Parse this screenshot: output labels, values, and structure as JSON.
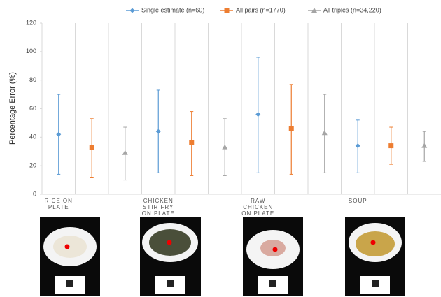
{
  "chart_data": {
    "type": "errorbar",
    "y_label": "Percentage Error (%)",
    "categories": [
      "RICE ON PLATE",
      "CHICKEN STIR FRY ON PLATE",
      "RAW CHICKEN ON PLATE",
      "SOUP"
    ],
    "series": [
      {
        "name": "Single estimate (n=60)",
        "color": "#5b9bd5",
        "marker": "diamond",
        "values": [
          42,
          44,
          56,
          34
        ],
        "low": [
          14,
          15,
          15,
          15
        ],
        "high": [
          70,
          73,
          96,
          52
        ]
      },
      {
        "name": "All pairs (n=1770)",
        "color": "#ed7d31",
        "marker": "square",
        "values": [
          33,
          36,
          46,
          34
        ],
        "low": [
          12,
          13,
          14,
          21
        ],
        "high": [
          53,
          58,
          77,
          47
        ]
      },
      {
        "name": "All triples (n=34,220)",
        "color": "#a5a5a5",
        "marker": "triangle",
        "values": [
          29,
          33,
          43,
          34
        ],
        "low": [
          10,
          13,
          15,
          23
        ],
        "high": [
          47,
          53,
          70,
          44
        ]
      }
    ],
    "ylim": [
      0,
      120
    ],
    "yticks": [
      0,
      20,
      40,
      60,
      80,
      100,
      120
    ],
    "legend": "top"
  }
}
